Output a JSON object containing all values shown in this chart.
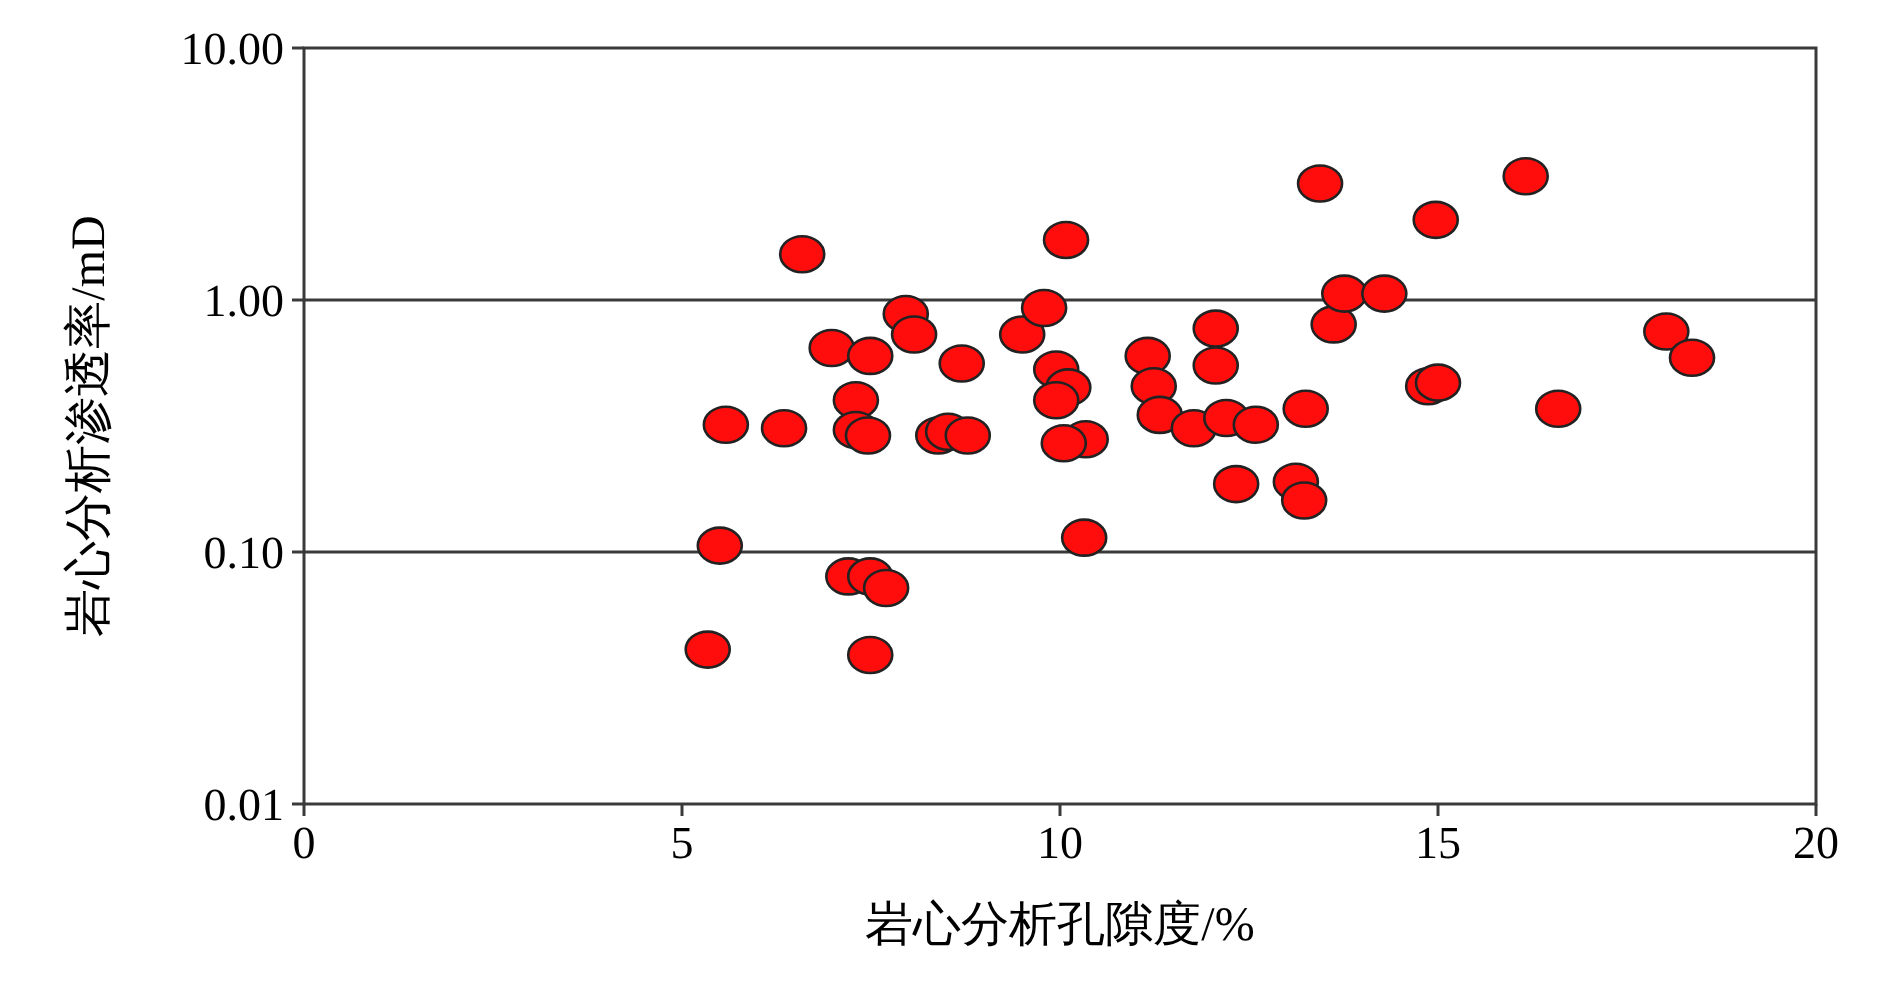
{
  "chart_data": {
    "type": "scatter",
    "xlabel": "岩心分析孔隙度/%",
    "ylabel": "岩心分析渗透率/mD",
    "log": "y",
    "grid": "y",
    "marker": "circle",
    "xlim": [
      0,
      20
    ],
    "xticks": [
      0,
      5,
      10,
      15,
      20
    ],
    "ylim": [
      0.01,
      10
    ],
    "yticks": [
      {
        "value": 0.01,
        "label": "0.01"
      },
      {
        "value": 0.1,
        "label": "0.10"
      },
      {
        "value": 1,
        "label": "1.00"
      },
      {
        "value": 10,
        "label": "10.00"
      }
    ],
    "series": [
      {
        "color": "#ff0d0d",
        "x": [
          5.34,
          5.5,
          5.58,
          6.35,
          6.59,
          6.98,
          7.3,
          7.3,
          7.46,
          7.49,
          7.2,
          7.49,
          7.7,
          7.49,
          7.96,
          8.07,
          8.39,
          8.52,
          8.78,
          8.7,
          9.5,
          9.79,
          10.08,
          9.95,
          10.11,
          9.95,
          10.34,
          10.05,
          10.32,
          11.16,
          11.24,
          11.32,
          11.77,
          12.06,
          12.06,
          12.2,
          12.59,
          12.33,
          13.12,
          13.23,
          13.25,
          13.44,
          13.62,
          13.76,
          14.29,
          14.97,
          14.87,
          15.0,
          16.16,
          16.59,
          18.02,
          18.36
        ],
        "values": [
          0.041,
          0.106,
          0.32,
          0.31,
          1.52,
          0.645,
          0.4,
          0.305,
          0.29,
          0.6,
          0.08,
          0.08,
          0.072,
          0.039,
          0.88,
          0.73,
          0.29,
          0.3,
          0.29,
          0.56,
          0.73,
          0.93,
          1.73,
          0.53,
          0.45,
          0.4,
          0.28,
          0.27,
          0.114,
          0.6,
          0.455,
          0.35,
          0.31,
          0.77,
          0.55,
          0.34,
          0.32,
          0.186,
          0.19,
          0.16,
          0.37,
          2.9,
          0.8,
          1.06,
          1.06,
          2.08,
          0.455,
          0.47,
          3.1,
          0.37,
          0.75,
          0.59
        ]
      }
    ]
  }
}
